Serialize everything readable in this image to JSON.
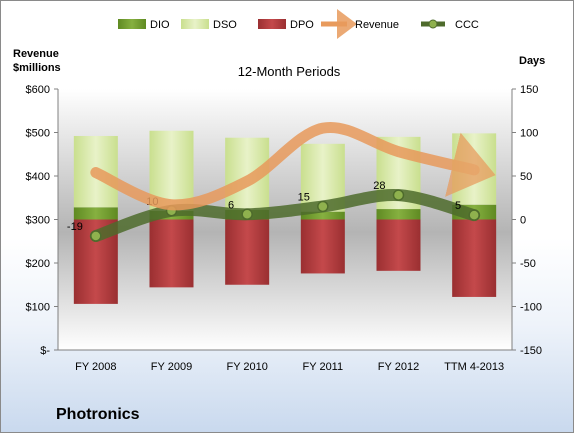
{
  "company": "Photronics",
  "chart_data": {
    "type": "bar",
    "title": "12-Month Periods",
    "left_axis_label_line1": "Revenue",
    "left_axis_label_line2": "$millions",
    "right_axis_label": "Days",
    "categories": [
      "FY 2008",
      "FY 2009",
      "FY 2010",
      "FY 2011",
      "FY 2012",
      "TTM 4-2013"
    ],
    "left_ylim": [
      0,
      600
    ],
    "left_ticks": [
      "$-",
      "$100",
      "$200",
      "$300",
      "$400",
      "$500",
      "$600"
    ],
    "right_ylim": [
      -150,
      150
    ],
    "right_ticks": [
      "-150",
      "-100",
      "-50",
      "0",
      "50",
      "100",
      "150"
    ],
    "legend_position": "top",
    "grid": false,
    "series": [
      {
        "name": "DIO",
        "axis": "days",
        "color": "#6f9a2c",
        "values": [
          14,
          10,
          11,
          9,
          12,
          17
        ]
      },
      {
        "name": "DSO",
        "axis": "days",
        "color": "#d7e8a8",
        "values": [
          82,
          92,
          83,
          78,
          83,
          82
        ]
      },
      {
        "name": "DPO",
        "axis": "days",
        "color": "#b0393b",
        "values": [
          -97,
          -78,
          -75,
          -62,
          -59,
          -89
        ]
      },
      {
        "name": "Revenue",
        "axis": "revenue",
        "color": "#e89a5c",
        "values": [
          408,
          334,
          388,
          510,
          456,
          414
        ]
      },
      {
        "name": "CCC",
        "axis": "days",
        "color": "#4e6b2c",
        "values": [
          -19,
          10,
          6,
          15,
          28,
          5
        ]
      }
    ],
    "ccc_labels": [
      "-19",
      "10",
      "6",
      "15",
      "28",
      "5"
    ]
  }
}
